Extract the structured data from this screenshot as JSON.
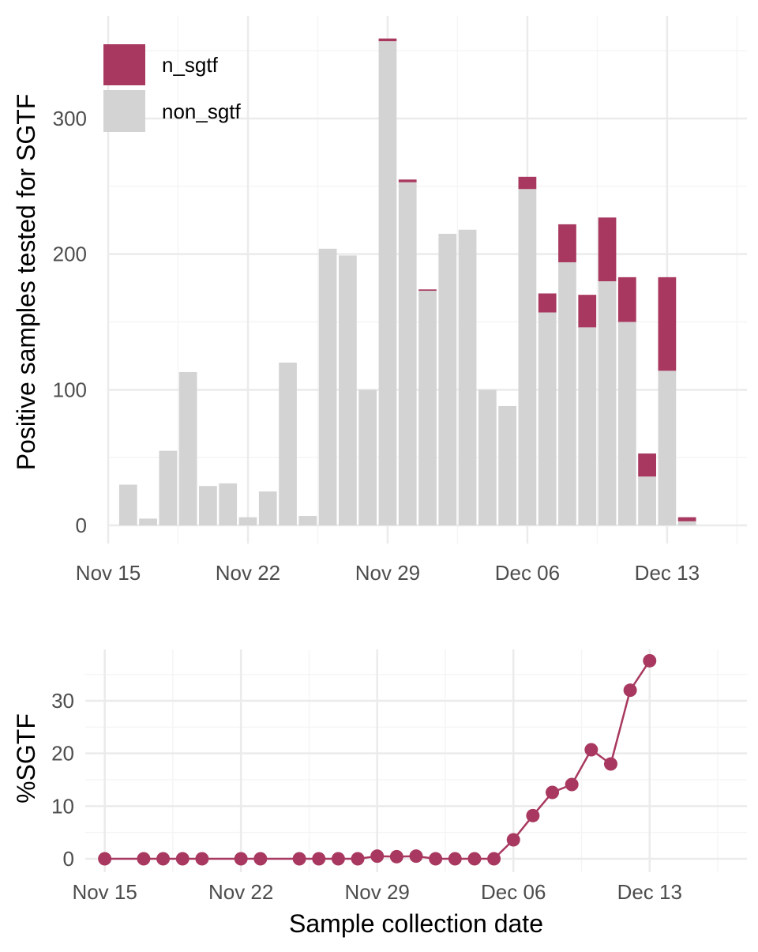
{
  "colors": {
    "n_sgtf": "#a8385f",
    "non_sgtf": "#d3d3d3",
    "grid_major": "#ebebeb",
    "grid_minor": "#f5f5f5",
    "line": "#a8385f"
  },
  "chart_data": [
    {
      "type": "bar",
      "stacked": true,
      "title": "",
      "xlabel": "",
      "ylabel": "Positive samples tested for SGTF",
      "x_range": [
        "2021-11-15",
        "2021-12-17"
      ],
      "ylim": [
        0,
        360
      ],
      "x_ticks": [
        {
          "date": "2021-11-15",
          "label": "Nov 15"
        },
        {
          "date": "2021-11-22",
          "label": "Nov 22"
        },
        {
          "date": "2021-11-29",
          "label": "Nov 29"
        },
        {
          "date": "2021-12-06",
          "label": "Dec 06"
        },
        {
          "date": "2021-12-13",
          "label": "Dec 13"
        }
      ],
      "y_ticks": [
        0,
        100,
        200,
        300
      ],
      "grid": true,
      "legend": {
        "position": "top-left",
        "entries": [
          {
            "name": "n_sgtf",
            "color_key": "n_sgtf"
          },
          {
            "name": "non_sgtf",
            "color_key": "non_sgtf"
          }
        ]
      },
      "categories": [
        "2021-11-16",
        "2021-11-17",
        "2021-11-18",
        "2021-11-19",
        "2021-11-20",
        "2021-11-21",
        "2021-11-22",
        "2021-11-23",
        "2021-11-24",
        "2021-11-25",
        "2021-11-26",
        "2021-11-27",
        "2021-11-28",
        "2021-11-29",
        "2021-11-30",
        "2021-12-01",
        "2021-12-02",
        "2021-12-03",
        "2021-12-04",
        "2021-12-05",
        "2021-12-06",
        "2021-12-07",
        "2021-12-08",
        "2021-12-09",
        "2021-12-10",
        "2021-12-11",
        "2021-12-12",
        "2021-12-13",
        "2021-12-14"
      ],
      "series": [
        {
          "name": "non_sgtf",
          "color_key": "non_sgtf",
          "values": [
            30,
            5,
            55,
            113,
            29,
            31,
            6,
            25,
            120,
            7,
            204,
            199,
            100,
            357,
            253,
            173,
            215,
            218,
            100,
            88,
            248,
            157,
            194,
            146,
            180,
            150,
            36,
            114,
            3
          ]
        },
        {
          "name": "n_sgtf",
          "color_key": "n_sgtf",
          "values": [
            0,
            0,
            0,
            0,
            0,
            0,
            0,
            0,
            0,
            0,
            0,
            0,
            0,
            2,
            2,
            1,
            0,
            0,
            0,
            0,
            9,
            14,
            28,
            24,
            47,
            33,
            17,
            69,
            3
          ]
        }
      ]
    },
    {
      "type": "line",
      "title": "",
      "xlabel": "Sample collection date",
      "ylabel": "%SGTF",
      "x_range": [
        "2021-11-14",
        "2021-12-18"
      ],
      "ylim": [
        0,
        37
      ],
      "x_ticks": [
        {
          "date": "2021-11-15",
          "label": "Nov 15"
        },
        {
          "date": "2021-11-22",
          "label": "Nov 22"
        },
        {
          "date": "2021-11-29",
          "label": "Nov 29"
        },
        {
          "date": "2021-12-06",
          "label": "Dec 06"
        },
        {
          "date": "2021-12-13",
          "label": "Dec 13"
        }
      ],
      "y_ticks": [
        0,
        10,
        20,
        30
      ],
      "grid": true,
      "series": [
        {
          "name": "%SGTF",
          "color_key": "line",
          "x": [
            "2021-11-15",
            "2021-11-17",
            "2021-11-18",
            "2021-11-19",
            "2021-11-20",
            "2021-11-22",
            "2021-11-23",
            "2021-11-25",
            "2021-11-26",
            "2021-11-27",
            "2021-11-28",
            "2021-11-29",
            "2021-11-30",
            "2021-12-01",
            "2021-12-02",
            "2021-12-03",
            "2021-12-04",
            "2021-12-05",
            "2021-12-06",
            "2021-12-07",
            "2021-12-08",
            "2021-12-09",
            "2021-12-10",
            "2021-12-11",
            "2021-12-12",
            "2021-12-13"
          ],
          "y": [
            0,
            0,
            0,
            0,
            0,
            0,
            0,
            0,
            0,
            0,
            0,
            0.5,
            0.4,
            0.5,
            0,
            0,
            0,
            0,
            3.6,
            8.2,
            12.6,
            14.1,
            20.7,
            18,
            32,
            37.6
          ]
        }
      ]
    }
  ]
}
